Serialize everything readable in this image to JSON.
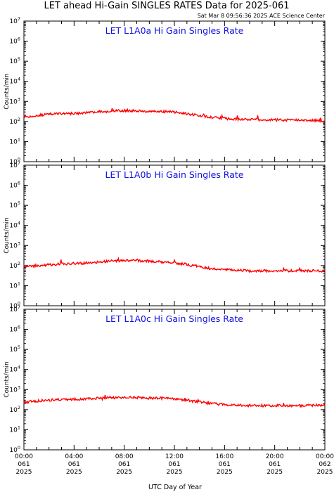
{
  "title": "LET ahead Hi-Gain SINGLES RATES Data for 2025-061",
  "timestamp": "Sat Mar  8 09:56:36 2025 ACE Science Center",
  "xlabel": "UTC Day of Year",
  "ylabel": "Counts/min",
  "colors": {
    "series": "#ff0000",
    "panel_title": "#1010e0",
    "frame": "#000000"
  },
  "chart_data": [
    {
      "type": "line",
      "title": "LET L1A0a Hi Gain Singles Rate",
      "ylabel": "Counts/min",
      "yscale": "log",
      "ylim": [
        1,
        10000000
      ],
      "xlim": [
        "2025-061 00:00",
        "2025-062 00:00"
      ],
      "x_hours": [
        0,
        1,
        2,
        3,
        4,
        5,
        6,
        7,
        8,
        9,
        10,
        11,
        12,
        13,
        14,
        15,
        16,
        17,
        18,
        19,
        20,
        21,
        22,
        23,
        24
      ],
      "series": [
        {
          "values": [
            180,
            200,
            230,
            250,
            250,
            270,
            300,
            330,
            350,
            340,
            320,
            310,
            300,
            240,
            200,
            160,
            140,
            130,
            125,
            120,
            120,
            118,
            118,
            115,
            110
          ]
        }
      ]
    },
    {
      "type": "line",
      "title": "LET L1A0b Hi Gain Singles Rate",
      "ylabel": "Counts/min",
      "yscale": "log",
      "ylim": [
        1,
        10000000
      ],
      "xlim": [
        "2025-061 00:00",
        "2025-062 00:00"
      ],
      "x_hours": [
        0,
        1,
        2,
        3,
        4,
        5,
        6,
        7,
        8,
        9,
        10,
        11,
        12,
        13,
        14,
        15,
        16,
        17,
        18,
        19,
        20,
        21,
        22,
        23,
        24
      ],
      "series": [
        {
          "values": [
            90,
            100,
            110,
            120,
            125,
            135,
            150,
            170,
            180,
            175,
            165,
            155,
            140,
            110,
            85,
            70,
            62,
            58,
            55,
            55,
            55,
            55,
            55,
            55,
            55
          ]
        }
      ]
    },
    {
      "type": "line",
      "title": "LET L1A0c Hi Gain Singles Rate",
      "ylabel": "Counts/min",
      "yscale": "log",
      "ylim": [
        1,
        10000000
      ],
      "xlim": [
        "2025-061 00:00",
        "2025-062 00:00"
      ],
      "x_hours": [
        0,
        1,
        2,
        3,
        4,
        5,
        6,
        7,
        8,
        9,
        10,
        11,
        12,
        13,
        14,
        15,
        16,
        17,
        18,
        19,
        20,
        21,
        22,
        23,
        24
      ],
      "series": [
        {
          "values": [
            230,
            270,
            300,
            320,
            330,
            350,
            370,
            390,
            410,
            400,
            380,
            370,
            350,
            290,
            240,
            200,
            180,
            170,
            165,
            160,
            160,
            160,
            160,
            165,
            170
          ]
        }
      ]
    }
  ],
  "x_ticks": [
    {
      "time": "00:00",
      "day": "061",
      "year": "2025"
    },
    {
      "time": "04:00",
      "day": "061",
      "year": "2025"
    },
    {
      "time": "08:00",
      "day": "061",
      "year": "2025"
    },
    {
      "time": "12:00",
      "day": "061",
      "year": "2025"
    },
    {
      "time": "16:00",
      "day": "061",
      "year": "2025"
    },
    {
      "time": "20:00",
      "day": "061",
      "year": "2025"
    },
    {
      "time": "00:00",
      "day": "062",
      "year": "2025"
    }
  ]
}
